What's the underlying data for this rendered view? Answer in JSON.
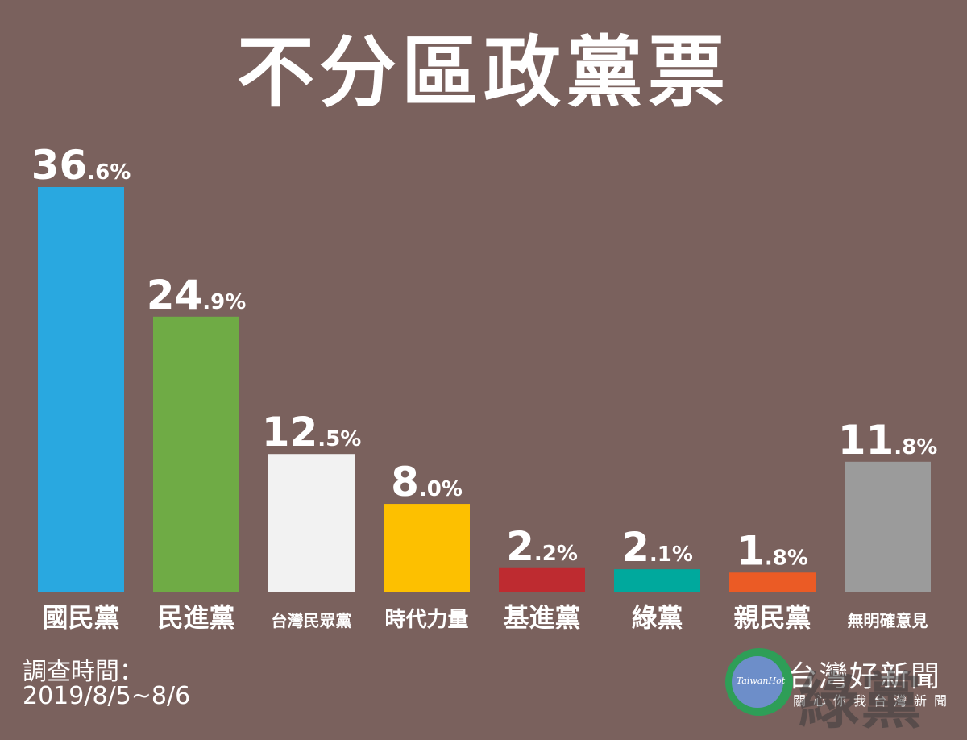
{
  "page": {
    "background_color": "#7a615d"
  },
  "chart_data": {
    "type": "bar",
    "title": "不分區政黨票",
    "unit": "%",
    "categories": [
      "國民黨",
      "民進黨",
      "台灣民眾黨",
      "時代力量",
      "基進黨",
      "綠黨",
      "親民黨",
      "無明確意見"
    ],
    "values": [
      36.6,
      24.9,
      12.5,
      8.0,
      2.2,
      2.1,
      1.8,
      11.8
    ],
    "value_labels": [
      {
        "int": "36",
        "dec": ".6%"
      },
      {
        "int": "24",
        "dec": ".9%"
      },
      {
        "int": "12",
        "dec": ".5%"
      },
      {
        "int": "8",
        "dec": ".0%"
      },
      {
        "int": "2",
        "dec": ".2%"
      },
      {
        "int": "2",
        "dec": ".1%"
      },
      {
        "int": "1",
        "dec": ".8%"
      },
      {
        "int": "11",
        "dec": ".8%"
      }
    ],
    "colors": [
      "#29a8e0",
      "#6fab45",
      "#f2f2f2",
      "#fdc000",
      "#be2b30",
      "#00a99d",
      "#eb5b25",
      "#9b9b9b"
    ],
    "ylim": [
      0,
      36.6
    ],
    "grid": false,
    "legend": "none"
  },
  "footer": {
    "survey_label": "調查時間：",
    "survey_date": "2019/8/5~8/6"
  },
  "logo": {
    "english": "TaiwanHot",
    "chinese": "台灣好新聞",
    "sub": "關心你我台灣新聞",
    "watermark": "綠黨"
  }
}
